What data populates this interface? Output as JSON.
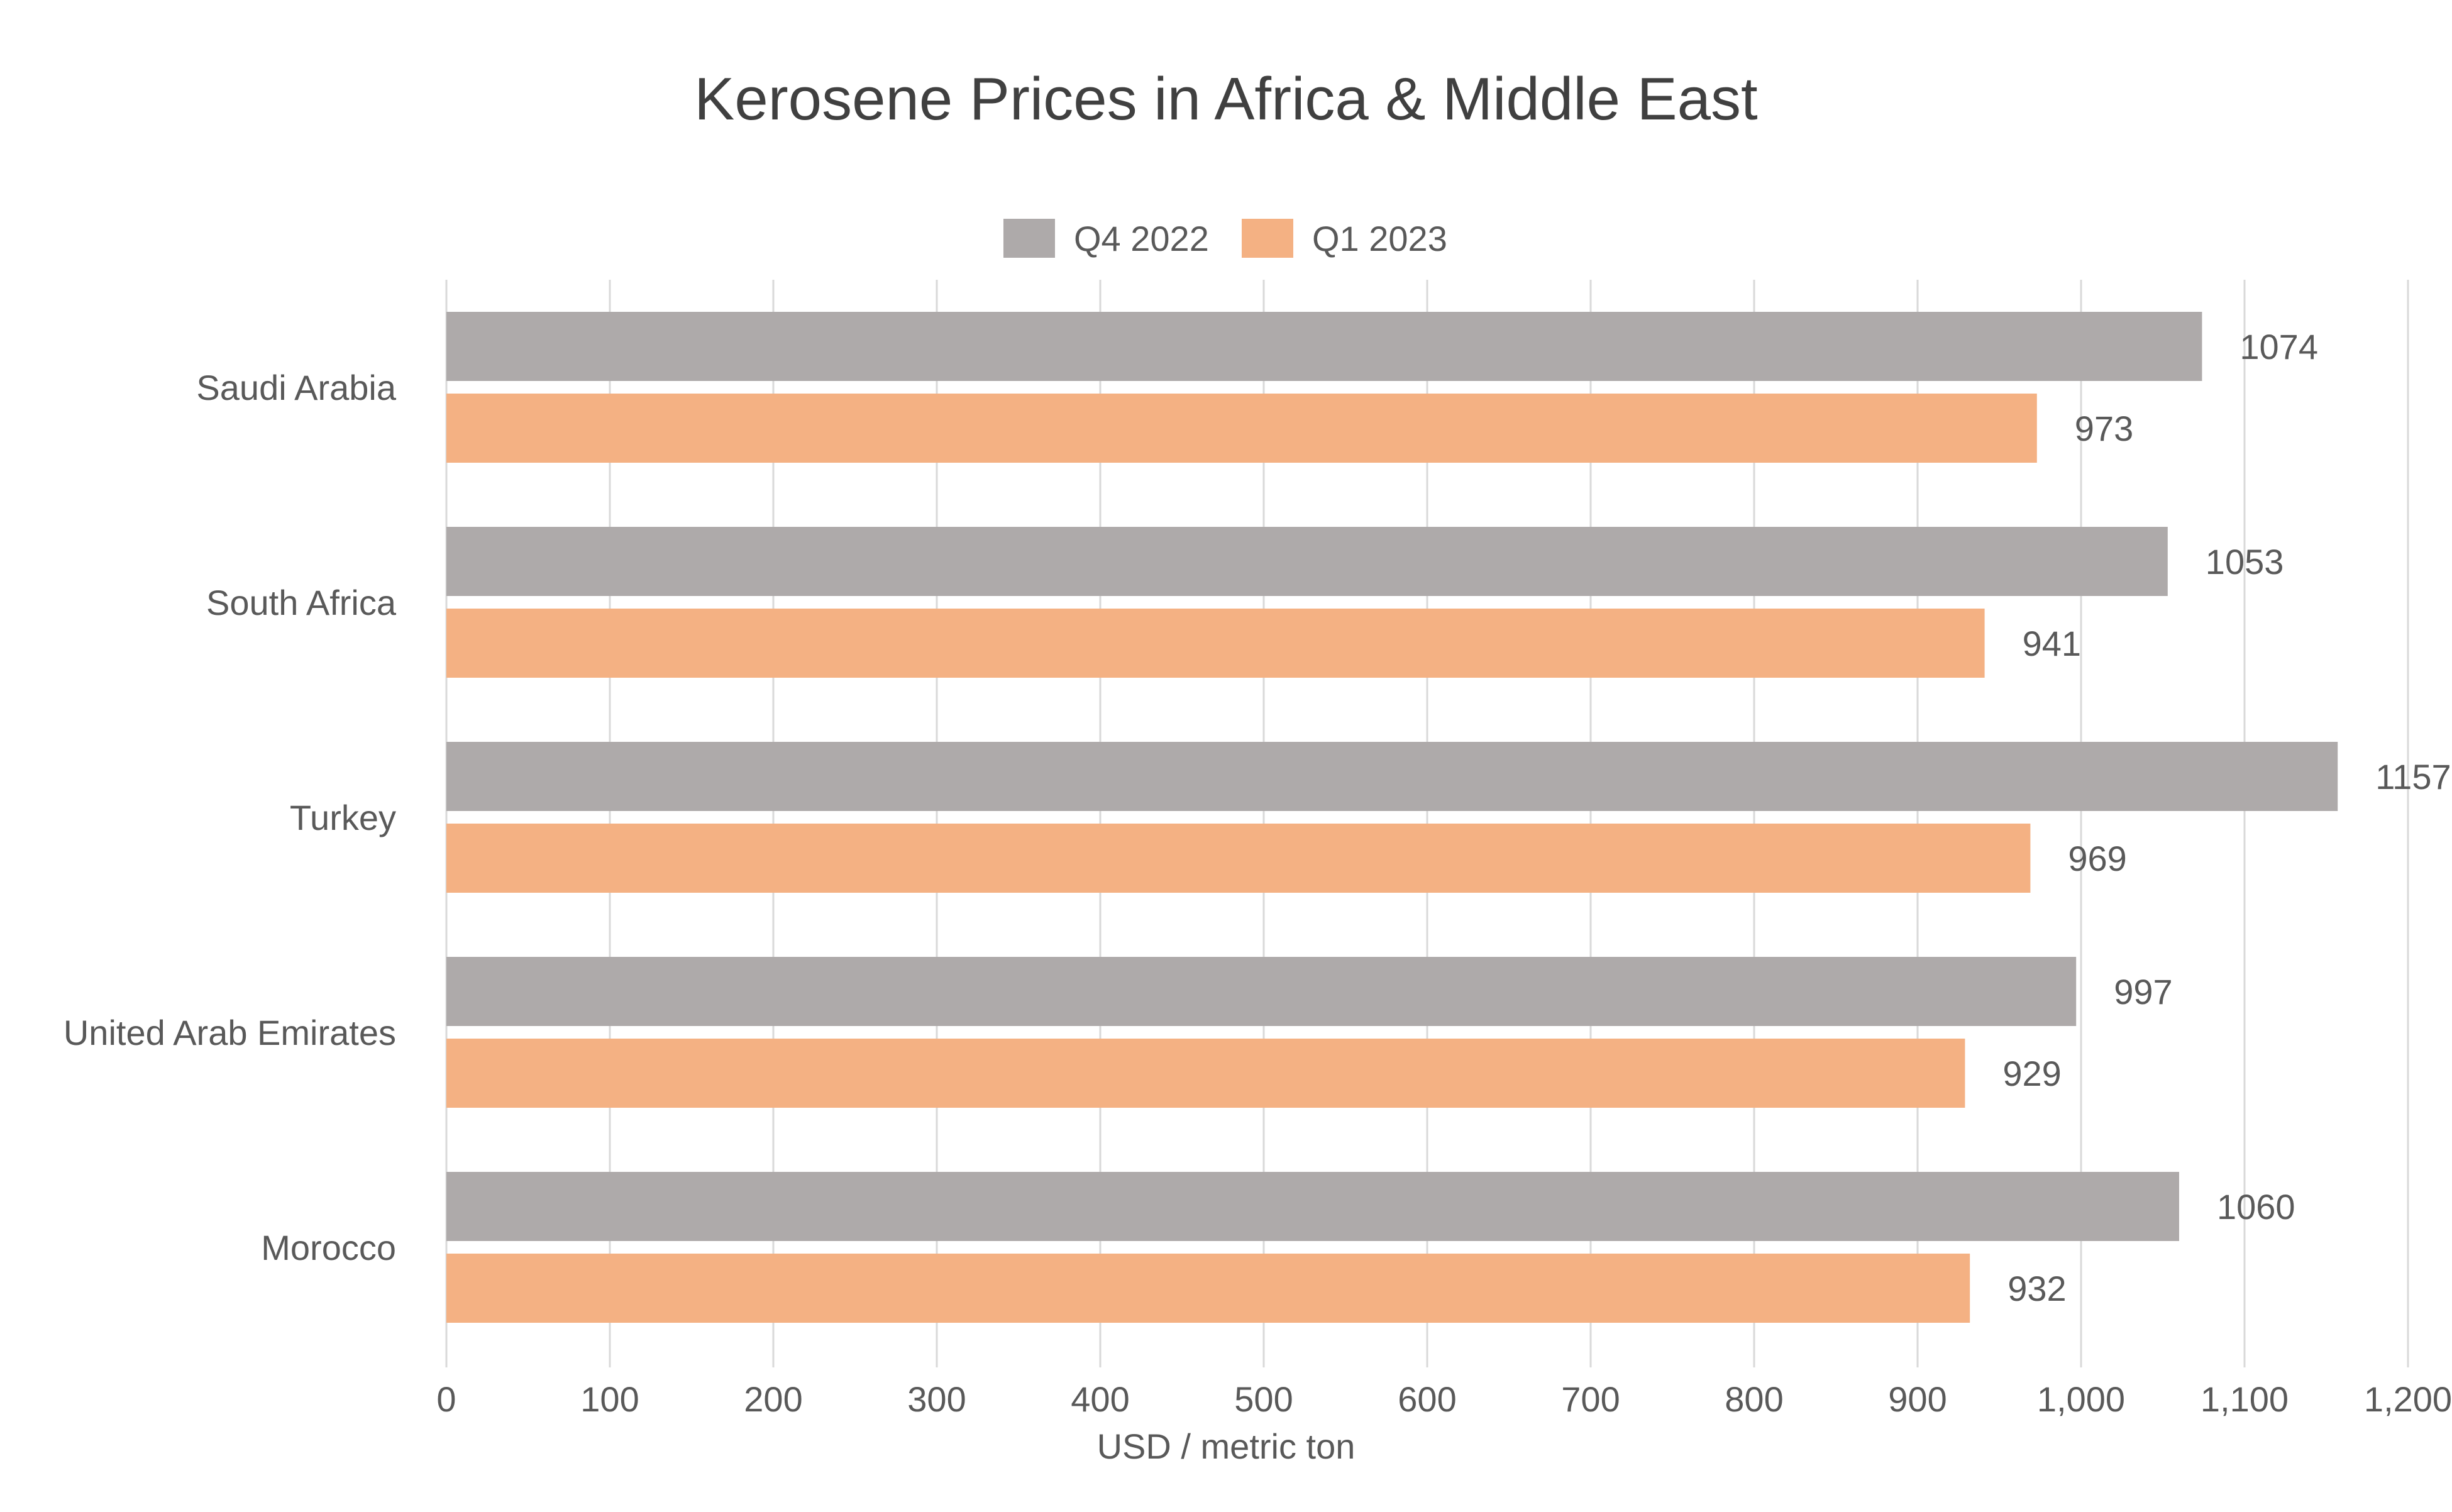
{
  "chart_data": {
    "type": "bar",
    "orientation": "horizontal",
    "title": "Kerosene Prices in Africa & Middle East",
    "xlabel": "USD / metric ton",
    "ylabel": "",
    "categories": [
      "Saudi Arabia",
      "South Africa",
      "Turkey",
      "United Arab Emirates",
      "Morocco"
    ],
    "series": [
      {
        "name": "Q4 2022",
        "color": "#aeaaaa",
        "values": [
          1074,
          1053,
          1157,
          997,
          1060
        ]
      },
      {
        "name": "Q1 2023",
        "color": "#f4b183",
        "values": [
          973,
          941,
          969,
          929,
          932
        ]
      }
    ],
    "xlim": [
      0,
      1200
    ],
    "xticks": [
      0,
      100,
      200,
      300,
      400,
      500,
      600,
      700,
      800,
      900,
      1000,
      1100,
      1200
    ],
    "xtick_labels": [
      "0",
      "100",
      "200",
      "300",
      "400",
      "500",
      "600",
      "700",
      "800",
      "900",
      "1,000",
      "1,100",
      "1,200"
    ],
    "grid": true,
    "legend_position": "top-center",
    "data_labels": true,
    "colors": {
      "text": "#595959",
      "title": "#404040",
      "grid": "#d9d9d9"
    }
  }
}
